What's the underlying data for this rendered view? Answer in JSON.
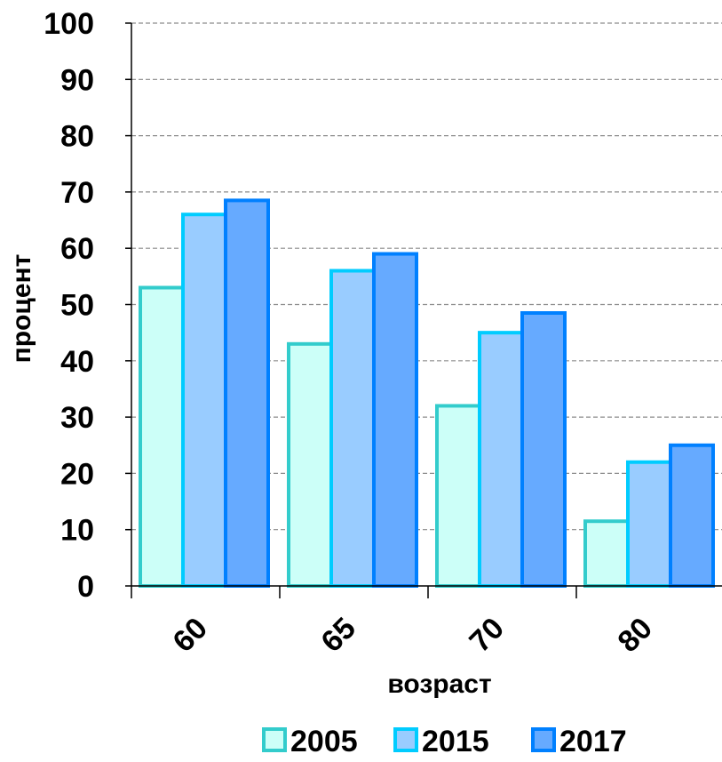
{
  "chart_data": {
    "type": "bar",
    "title": "",
    "xlabel": "возраст",
    "ylabel": "процент",
    "categories": [
      "60",
      "65",
      "70",
      "80"
    ],
    "series": [
      {
        "name": "2005",
        "values": [
          53,
          43,
          32,
          11.5
        ],
        "fill": "#ccfff8",
        "stroke": "#33cccc"
      },
      {
        "name": "2015",
        "values": [
          66,
          56,
          45,
          22
        ],
        "fill": "#99ccff",
        "stroke": "#00ccff"
      },
      {
        "name": "2017",
        "values": [
          68.5,
          59,
          48.5,
          25
        ],
        "fill": "#66aaff",
        "stroke": "#0080ff"
      }
    ],
    "ylim": [
      0,
      100
    ],
    "yticks": [
      "0",
      "10",
      "20",
      "30",
      "40",
      "50",
      "60",
      "70",
      "80",
      "90",
      "100"
    ],
    "grid": true,
    "legend_position": "bottom"
  }
}
